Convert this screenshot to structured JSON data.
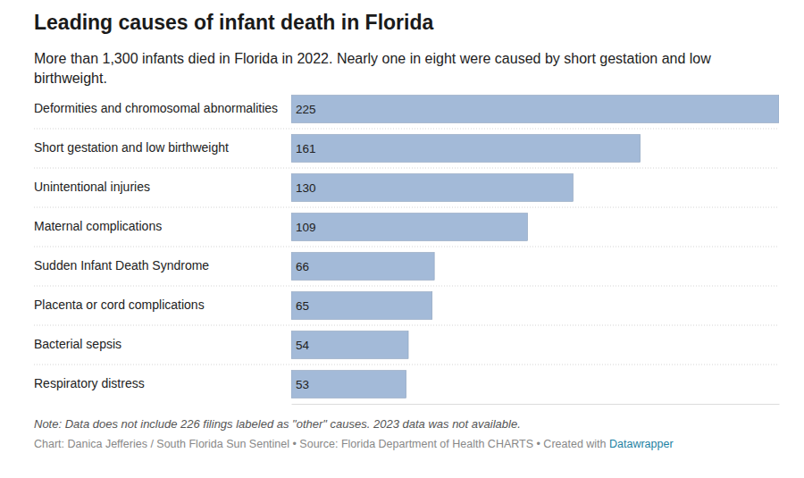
{
  "chart_data": {
    "type": "bar",
    "orientation": "horizontal",
    "title": "Leading causes of infant death in Florida",
    "subtitle": "More than 1,300 infants died in Florida in 2022. Nearly one in eight were caused by short gestation and low birthweight.",
    "categories": [
      "Deformities and chromosomal abnormalities",
      "Short gestation and low birthweight",
      "Unintentional injuries",
      "Maternal complications",
      "Sudden Infant Death Syndrome",
      "Placenta or cord complications",
      "Bacterial sepsis",
      "Respiratory distress"
    ],
    "values": [
      225,
      161,
      130,
      109,
      66,
      65,
      54,
      53
    ],
    "color": "#a3bad8",
    "xlim": [
      0,
      225
    ],
    "xticks": [],
    "data_labels": true,
    "tick_labels": "y",
    "grid": false,
    "note": "Note: Data does not include 226 filings labeled as \"other\" causes. 2023 data was not available.",
    "source": "Chart: Danica Jefferies / South Florida Sun Sentinel • Source: Florida Department of Health CHARTS • Created with",
    "source_link": "Datawrapper"
  }
}
